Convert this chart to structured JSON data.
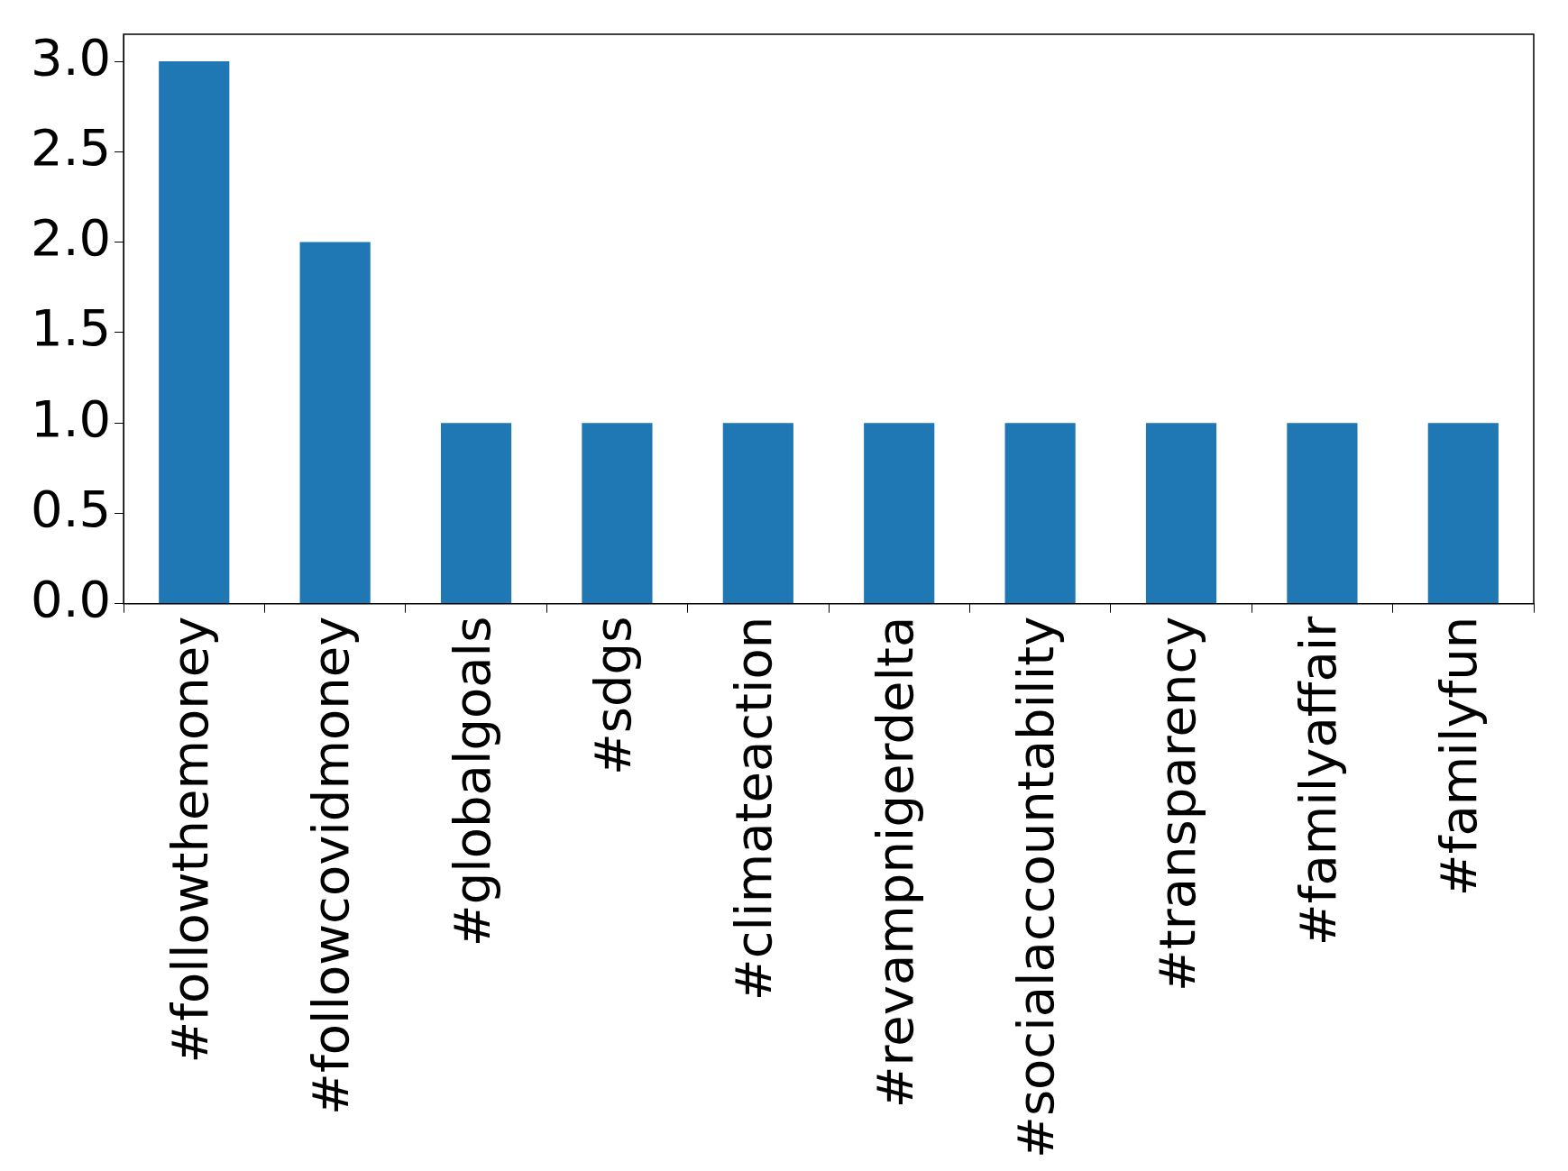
{
  "chart_data": {
    "type": "bar",
    "categories": [
      "#followthemoney",
      "#followcovidmoney",
      "#globalgoals",
      "#sdgs",
      "#climateaction",
      "#revampnigerdelta",
      "#socialaccountability",
      "#transparency",
      "#familyaffair",
      "#familyfun"
    ],
    "values": [
      3,
      2,
      1,
      1,
      1,
      1,
      1,
      1,
      1,
      1
    ],
    "color": "#1f77b4",
    "ylim": [
      0,
      3.15
    ],
    "yticks": [
      {
        "value": 0,
        "label": "0.0"
      },
      {
        "value": 0.5,
        "label": "0.5"
      },
      {
        "value": 1,
        "label": "1.0"
      },
      {
        "value": 1.5,
        "label": "1.5"
      },
      {
        "value": 2,
        "label": "2.0"
      },
      {
        "value": 2.5,
        "label": "2.5"
      },
      {
        "value": 3,
        "label": "3.0"
      }
    ],
    "grid": false,
    "legend": false
  }
}
